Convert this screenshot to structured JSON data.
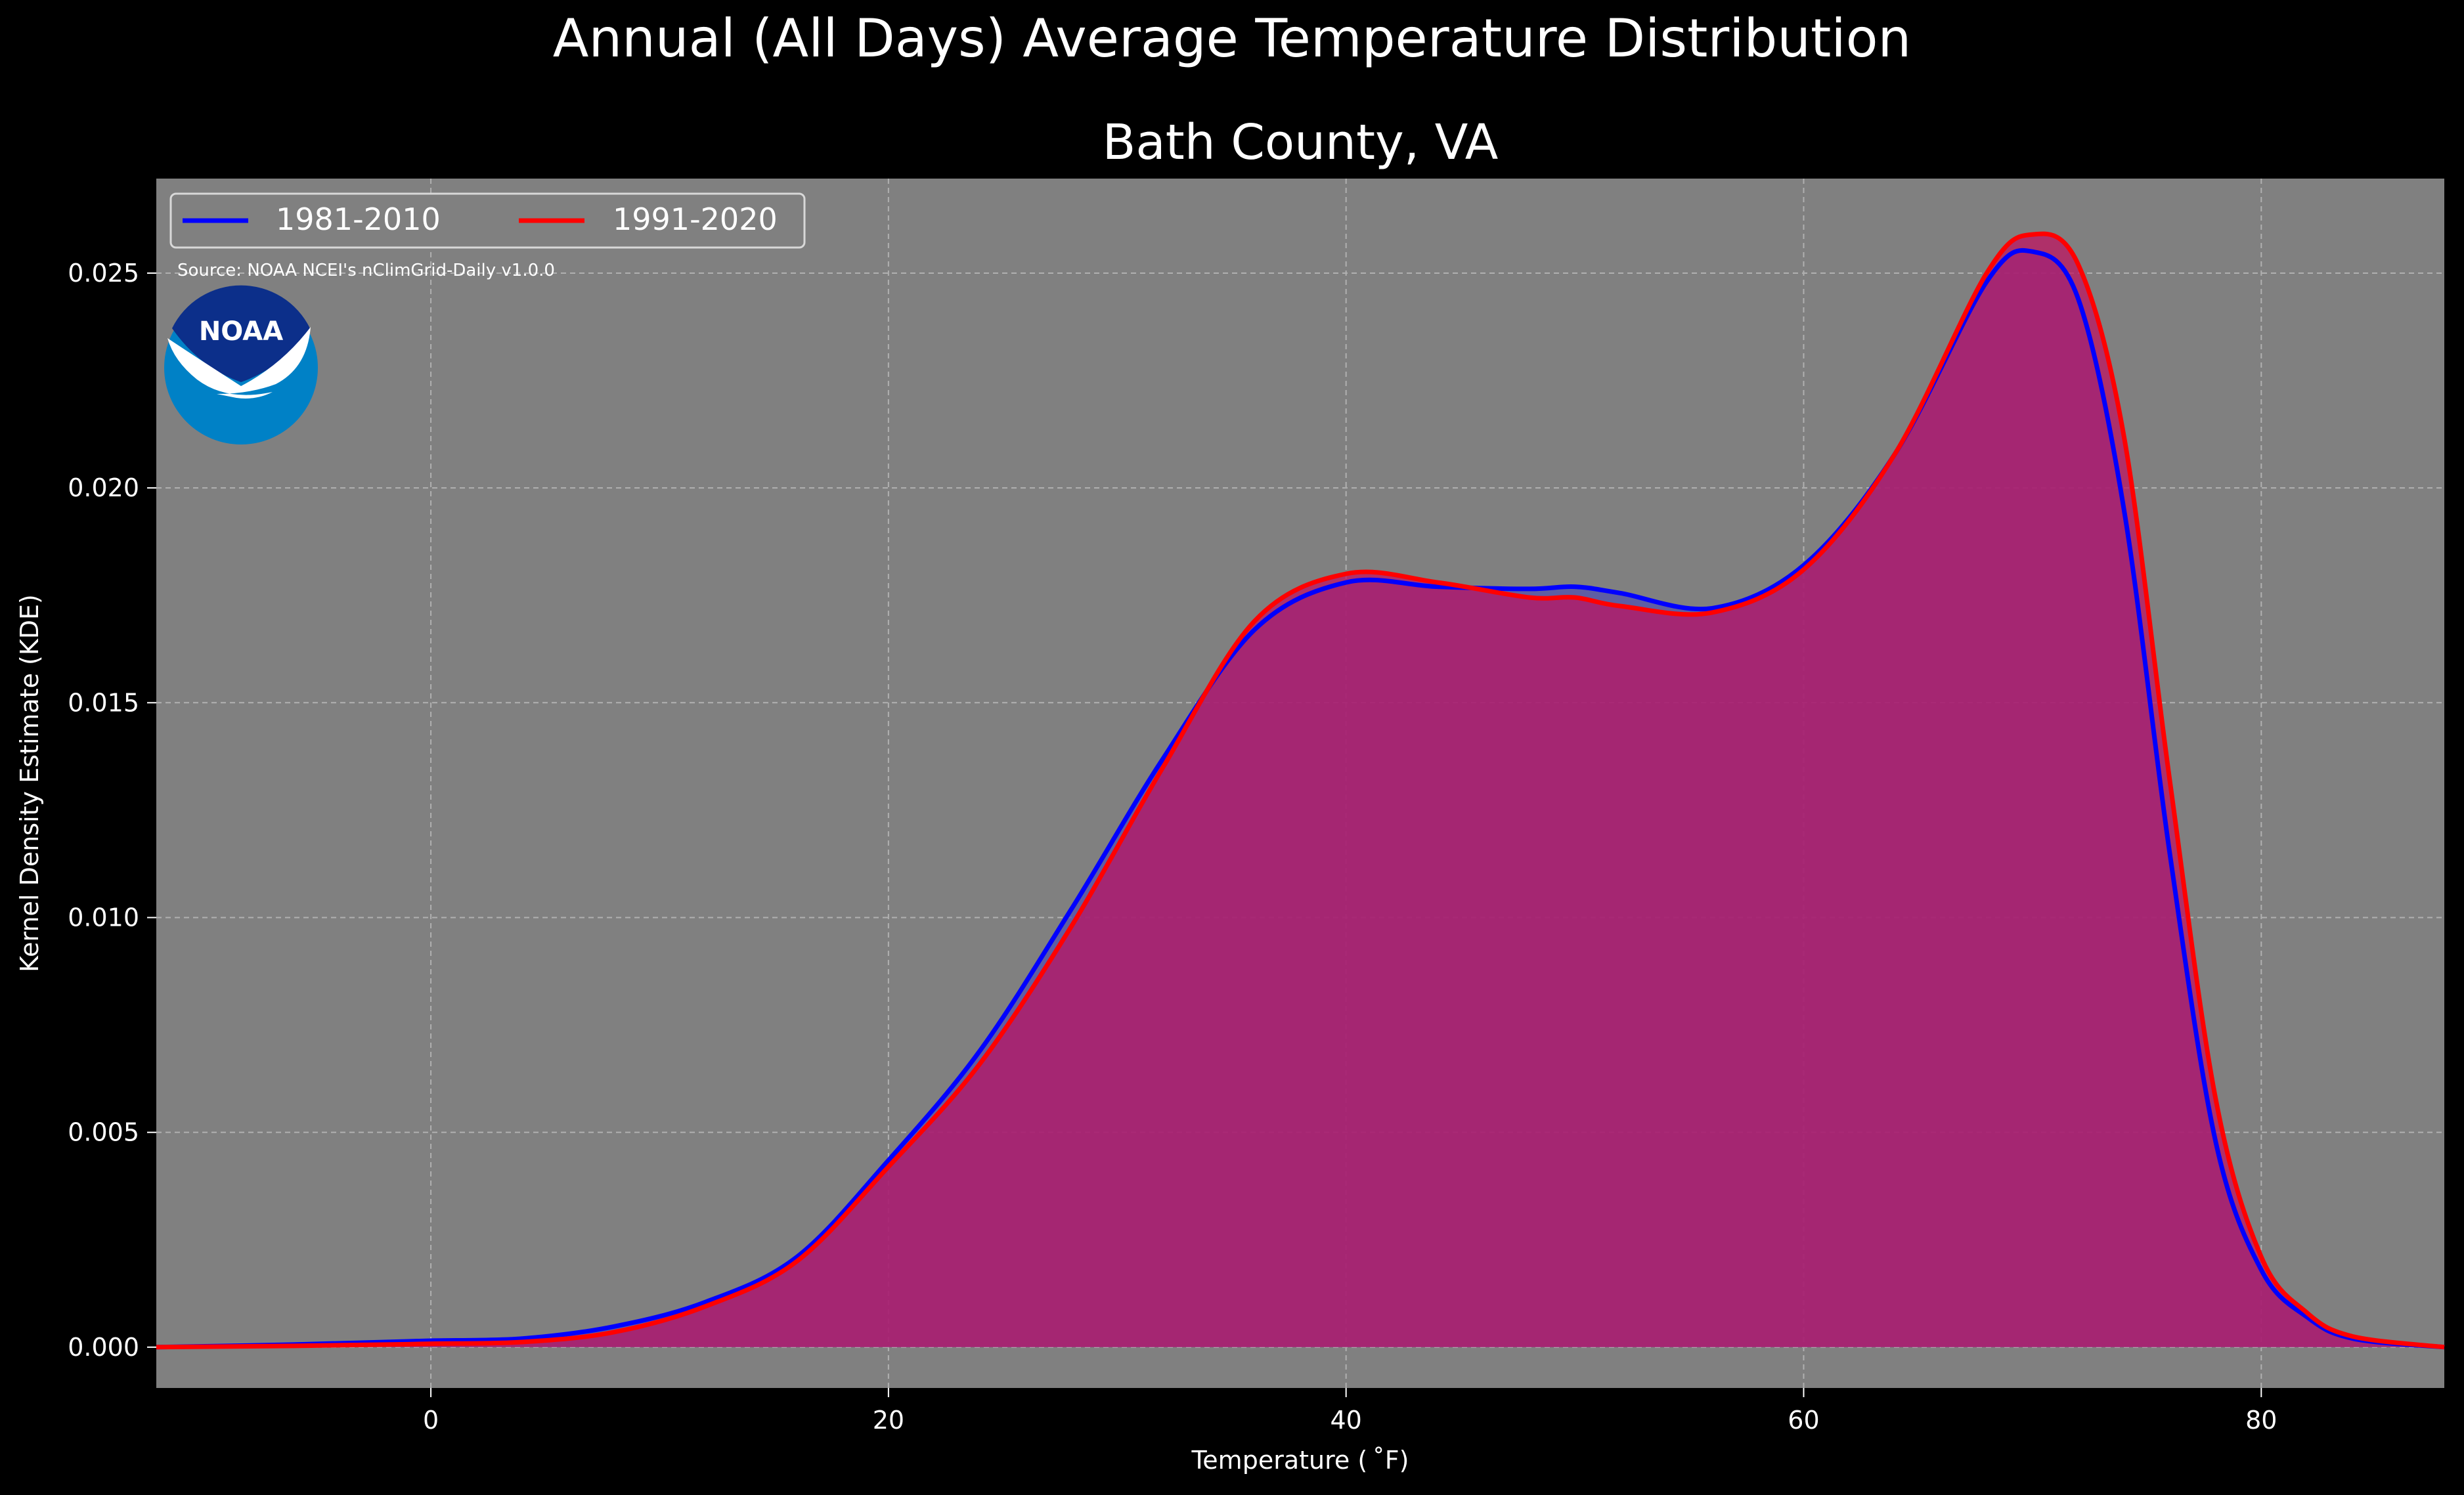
{
  "chart_data": {
    "type": "area",
    "suptitle": "Annual (All Days) Average Temperature Distribution",
    "title": "Bath County, VA",
    "xlabel": "Temperature ($^\\circ$F)",
    "xlabel_display": "Temperature ( ˚F)",
    "ylabel": "Kernel Density Estimate (KDE)",
    "source_note": "Source: NOAA NCEI's nClimGrid-Daily v1.0.0",
    "logo_text": "NOAA",
    "xlim": [
      -12,
      88
    ],
    "ylim": [
      -0.00095,
      0.0272
    ],
    "x_ticks": [
      0,
      20,
      40,
      60,
      80
    ],
    "y_ticks": [
      0.0,
      0.005,
      0.01,
      0.015,
      0.02,
      0.025
    ],
    "y_tick_labels": [
      "0.000",
      "0.005",
      "0.010",
      "0.015",
      "0.020",
      "0.025"
    ],
    "grid": true,
    "legend_position": "top-left",
    "background": "#808080",
    "figure_background": "#000000",
    "series": [
      {
        "name": "1981-2010",
        "color": "#0000ff",
        "fill": "#5050b0",
        "points": [
          [
            -12,
            0.0
          ],
          [
            -6,
            6e-05
          ],
          [
            -2,
            0.00012
          ],
          [
            0,
            0.00015
          ],
          [
            4,
            0.0002
          ],
          [
            8,
            0.00048
          ],
          [
            12,
            0.00105
          ],
          [
            16,
            0.0021
          ],
          [
            20,
            0.00435
          ],
          [
            24,
            0.0069
          ],
          [
            28,
            0.0102
          ],
          [
            32,
            0.0137
          ],
          [
            36,
            0.0167
          ],
          [
            40,
            0.0178
          ],
          [
            44,
            0.0177
          ],
          [
            48,
            0.01765
          ],
          [
            50,
            0.0177
          ],
          [
            52,
            0.01755
          ],
          [
            56,
            0.0172
          ],
          [
            60,
            0.0182
          ],
          [
            64,
            0.0208
          ],
          [
            68,
            0.0248
          ],
          [
            70,
            0.0255
          ],
          [
            72,
            0.0244
          ],
          [
            74,
            0.0195
          ],
          [
            76,
            0.0115
          ],
          [
            78,
            0.0048
          ],
          [
            80,
            0.0018
          ],
          [
            82,
            0.0007
          ],
          [
            84,
            0.0002
          ],
          [
            88,
            0.0
          ]
        ]
      },
      {
        "name": "1991-2020",
        "color": "#ff0000",
        "fill": "#c01060",
        "points": [
          [
            -12,
            0.0
          ],
          [
            -6,
            3e-05
          ],
          [
            -2,
            6e-05
          ],
          [
            0,
            8e-05
          ],
          [
            4,
            0.00012
          ],
          [
            8,
            0.00035
          ],
          [
            12,
            0.00095
          ],
          [
            16,
            0.002
          ],
          [
            20,
            0.0042
          ],
          [
            24,
            0.0066
          ],
          [
            28,
            0.0098
          ],
          [
            32,
            0.0135
          ],
          [
            36,
            0.0169
          ],
          [
            40,
            0.018
          ],
          [
            44,
            0.0178
          ],
          [
            48,
            0.01745
          ],
          [
            50,
            0.01745
          ],
          [
            52,
            0.01725
          ],
          [
            56,
            0.0171
          ],
          [
            60,
            0.0181
          ],
          [
            64,
            0.0208
          ],
          [
            68,
            0.025
          ],
          [
            70,
            0.0259
          ],
          [
            72,
            0.0252
          ],
          [
            74,
            0.0212
          ],
          [
            76,
            0.0132
          ],
          [
            78,
            0.0058
          ],
          [
            80,
            0.0021
          ],
          [
            82,
            0.0008
          ],
          [
            84,
            0.00025
          ],
          [
            88,
            0.0
          ]
        ]
      }
    ]
  }
}
